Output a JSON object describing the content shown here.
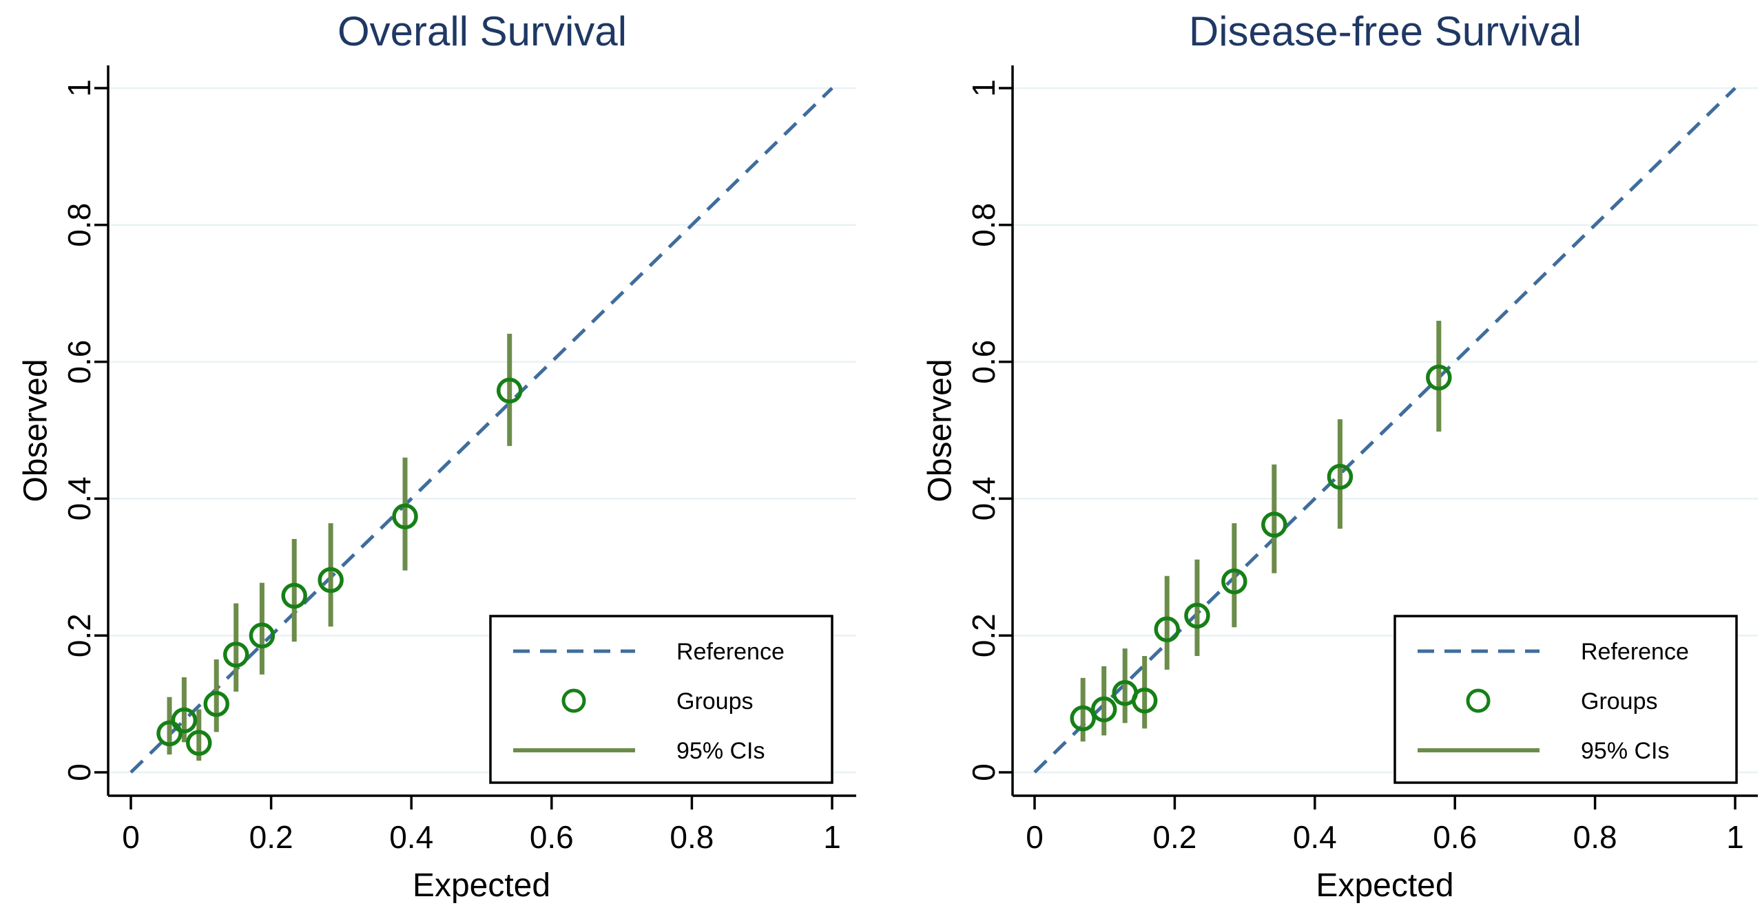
{
  "page": {
    "background": "#ffffff"
  },
  "colors": {
    "title": "#1f3864",
    "reference_line": "#3f6d9c",
    "group_marker": "#168016",
    "ci_bar": "#6c8c4a",
    "gridline": "#e8f2f4",
    "axis": "#000000",
    "legend_border": "#000000",
    "legend_background": "#ffffff"
  },
  "chart_data": [
    {
      "type": "scatter",
      "title": "Overall Survival",
      "xlabel": "Expected",
      "ylabel": "Observed",
      "xlim": [
        0,
        1
      ],
      "ylim": [
        0,
        1
      ],
      "x_ticks": [
        0,
        0.2,
        0.4,
        0.6,
        0.8,
        1
      ],
      "x_ticklabels": [
        "0",
        "0.2",
        "0.4",
        "0.6",
        "0.8",
        "1"
      ],
      "y_ticks": [
        0,
        0.2,
        0.4,
        0.6,
        0.8,
        1
      ],
      "y_ticklabels": [
        "0",
        "0.2",
        "0.4",
        "0.6",
        "0.8",
        "1"
      ],
      "grid": "horizontal",
      "legend_position": "bottom-right",
      "legend": [
        {
          "symbol": "dashed-line",
          "label": "Reference"
        },
        {
          "symbol": "circle",
          "label": "Groups"
        },
        {
          "symbol": "solid-line",
          "label": "95% CIs"
        }
      ],
      "reference_line": {
        "from": [
          0,
          0
        ],
        "to": [
          1,
          1
        ]
      },
      "series": [
        {
          "name": "Groups",
          "points": [
            {
              "x": 0.055,
              "y": 0.057,
              "ci_low": 0.026,
              "ci_high": 0.11
            },
            {
              "x": 0.076,
              "y": 0.076,
              "ci_low": 0.044,
              "ci_high": 0.139
            },
            {
              "x": 0.097,
              "y": 0.043,
              "ci_low": 0.017,
              "ci_high": 0.092
            },
            {
              "x": 0.122,
              "y": 0.1,
              "ci_low": 0.059,
              "ci_high": 0.165
            },
            {
              "x": 0.15,
              "y": 0.172,
              "ci_low": 0.118,
              "ci_high": 0.247
            },
            {
              "x": 0.187,
              "y": 0.2,
              "ci_low": 0.143,
              "ci_high": 0.277
            },
            {
              "x": 0.233,
              "y": 0.258,
              "ci_low": 0.191,
              "ci_high": 0.341
            },
            {
              "x": 0.285,
              "y": 0.281,
              "ci_low": 0.213,
              "ci_high": 0.364
            },
            {
              "x": 0.391,
              "y": 0.374,
              "ci_low": 0.295,
              "ci_high": 0.46
            },
            {
              "x": 0.54,
              "y": 0.558,
              "ci_low": 0.477,
              "ci_high": 0.641
            }
          ]
        }
      ]
    },
    {
      "type": "scatter",
      "title": "Disease-free Survival",
      "xlabel": "Expected",
      "ylabel": "Observed",
      "xlim": [
        0,
        1
      ],
      "ylim": [
        0,
        1
      ],
      "x_ticks": [
        0,
        0.2,
        0.4,
        0.6,
        0.8,
        1
      ],
      "x_ticklabels": [
        "0",
        "0.2",
        "0.4",
        "0.6",
        "0.8",
        "1"
      ],
      "y_ticks": [
        0,
        0.2,
        0.4,
        0.6,
        0.8,
        1
      ],
      "y_ticklabels": [
        "0",
        "0.2",
        "0.4",
        "0.6",
        "0.8",
        "1"
      ],
      "grid": "horizontal",
      "legend_position": "bottom-right",
      "legend": [
        {
          "symbol": "dashed-line",
          "label": "Reference"
        },
        {
          "symbol": "circle",
          "label": "Groups"
        },
        {
          "symbol": "solid-line",
          "label": "95% CIs"
        }
      ],
      "reference_line": {
        "from": [
          0,
          0
        ],
        "to": [
          1,
          1
        ]
      },
      "series": [
        {
          "name": "Groups",
          "points": [
            {
              "x": 0.069,
              "y": 0.079,
              "ci_low": 0.045,
              "ci_high": 0.138
            },
            {
              "x": 0.099,
              "y": 0.092,
              "ci_low": 0.054,
              "ci_high": 0.155
            },
            {
              "x": 0.129,
              "y": 0.116,
              "ci_low": 0.072,
              "ci_high": 0.181
            },
            {
              "x": 0.157,
              "y": 0.105,
              "ci_low": 0.064,
              "ci_high": 0.17
            },
            {
              "x": 0.189,
              "y": 0.209,
              "ci_low": 0.15,
              "ci_high": 0.287
            },
            {
              "x": 0.232,
              "y": 0.229,
              "ci_low": 0.17,
              "ci_high": 0.311
            },
            {
              "x": 0.285,
              "y": 0.279,
              "ci_low": 0.212,
              "ci_high": 0.364
            },
            {
              "x": 0.342,
              "y": 0.362,
              "ci_low": 0.291,
              "ci_high": 0.45
            },
            {
              "x": 0.436,
              "y": 0.432,
              "ci_low": 0.356,
              "ci_high": 0.516
            },
            {
              "x": 0.577,
              "y": 0.577,
              "ci_low": 0.498,
              "ci_high": 0.66
            }
          ]
        }
      ]
    }
  ]
}
